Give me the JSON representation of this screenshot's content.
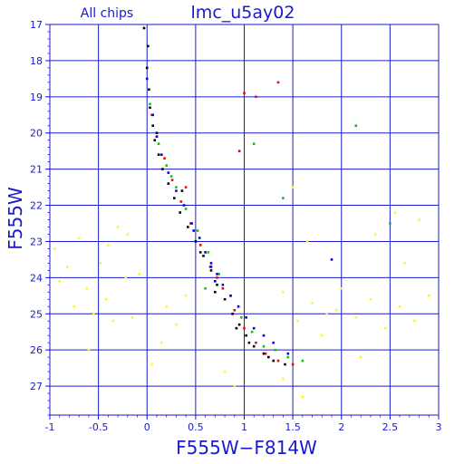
{
  "chart_data": {
    "type": "scatter",
    "title": "lmc_u5ay02",
    "subtitle": "All chips",
    "xlabel": "F555W−F814W",
    "ylabel": "F555W",
    "xlim": [
      -1,
      3
    ],
    "ylim": [
      27.8,
      17
    ],
    "y_inverted": true,
    "grid": true,
    "x_ticks": [
      -1,
      -0.5,
      0,
      0.5,
      1,
      1.5,
      2,
      2.5,
      3
    ],
    "x_tick_labels": [
      "-1",
      "-0.5",
      "0",
      "0.5",
      "1",
      "1.5",
      "2",
      "2.5",
      "3"
    ],
    "y_ticks": [
      17,
      18,
      19,
      20,
      21,
      22,
      23,
      24,
      25,
      26,
      27
    ],
    "y_tick_labels": [
      "17",
      "18",
      "19",
      "20",
      "21",
      "22",
      "23",
      "24",
      "25",
      "26",
      "27"
    ],
    "colors": {
      "axis": "#1a1acc",
      "grid": "#1a1acc",
      "chip_black": "#000000",
      "chip_red": "#ff0000",
      "chip_green": "#00cc00",
      "chip_blue": "#0000ff",
      "background_yellow": "#ffff00"
    },
    "series": [
      {
        "color": "#000000",
        "x": [
          -0.03,
          0.01,
          0.0,
          0.02,
          0.03,
          0.06,
          0.08,
          0.12,
          0.16,
          0.22,
          0.28,
          0.34,
          0.42,
          0.5,
          0.58,
          0.66,
          0.72,
          0.8,
          0.88,
          0.95,
          1.02,
          1.1,
          1.2,
          1.3,
          1.42,
          0.1,
          0.36,
          0.55,
          0.7,
          0.92,
          1.05,
          1.25
        ],
        "y": [
          17.1,
          17.6,
          18.2,
          18.8,
          19.3,
          19.8,
          20.2,
          20.6,
          21.0,
          21.4,
          21.8,
          22.2,
          22.6,
          23.0,
          23.4,
          23.8,
          24.2,
          24.6,
          25.0,
          25.3,
          25.6,
          25.9,
          26.1,
          26.3,
          26.4,
          20.0,
          21.6,
          23.3,
          24.4,
          25.4,
          25.8,
          26.2
        ]
      },
      {
        "color": "#ff0000",
        "x": [
          0.05,
          0.1,
          0.18,
          0.26,
          0.35,
          0.45,
          0.55,
          0.65,
          0.78,
          0.9,
          1.0,
          1.12,
          1.22,
          1.35,
          1.5,
          1.0,
          1.12,
          0.95,
          1.35,
          0.4,
          0.72
        ],
        "y": [
          19.5,
          20.1,
          20.7,
          21.3,
          21.9,
          22.5,
          23.1,
          23.7,
          24.3,
          24.9,
          25.4,
          25.8,
          26.1,
          26.3,
          26.4,
          18.9,
          19.0,
          20.5,
          18.6,
          21.5,
          24.0
        ]
      },
      {
        "color": "#00cc00",
        "x": [
          0.03,
          0.12,
          0.2,
          0.3,
          0.4,
          0.52,
          0.63,
          0.74,
          0.86,
          0.97,
          1.08,
          1.2,
          1.32,
          1.45,
          1.6,
          1.1,
          1.4,
          2.15,
          2.5,
          0.25,
          0.6
        ],
        "y": [
          19.2,
          20.3,
          20.9,
          21.5,
          22.1,
          22.7,
          23.3,
          23.9,
          24.5,
          25.1,
          25.5,
          25.9,
          26.0,
          26.2,
          26.3,
          20.3,
          21.8,
          19.8,
          22.5,
          21.2,
          24.3
        ]
      },
      {
        "color": "#0000ff",
        "x": [
          0.0,
          0.06,
          0.1,
          0.15,
          0.22,
          0.3,
          0.38,
          0.46,
          0.54,
          0.6,
          0.66,
          0.72,
          0.78,
          0.86,
          0.94,
          1.02,
          1.1,
          1.2,
          1.3,
          0.66,
          0.7,
          1.45,
          1.9,
          0.48
        ],
        "y": [
          18.5,
          19.5,
          20.1,
          20.6,
          21.1,
          21.6,
          22.0,
          22.5,
          22.9,
          23.3,
          23.6,
          23.9,
          24.2,
          24.5,
          24.8,
          25.1,
          25.4,
          25.6,
          25.8,
          23.7,
          24.1,
          26.1,
          23.5,
          22.7
        ]
      },
      {
        "color": "#ffff00",
        "x": [
          -0.95,
          -0.9,
          -0.82,
          -0.75,
          -0.7,
          -0.62,
          -0.55,
          -0.48,
          -0.42,
          -0.35,
          -0.3,
          -0.22,
          -0.15,
          -0.08,
          0.2,
          0.3,
          0.4,
          1.4,
          1.55,
          1.7,
          1.85,
          2.0,
          2.15,
          2.3,
          2.45,
          2.6,
          2.75,
          2.9,
          2.35,
          2.55,
          1.5,
          1.65,
          1.95,
          2.2,
          0.05,
          1.8,
          2.65,
          1.4,
          1.6,
          -0.6,
          -0.4,
          -0.2,
          0.15,
          0.8,
          0.9,
          2.8
        ],
        "y": [
          23.2,
          24.1,
          23.7,
          24.8,
          22.9,
          24.3,
          25.0,
          23.6,
          24.6,
          25.2,
          22.6,
          24.0,
          25.1,
          23.9,
          24.8,
          25.3,
          24.5,
          24.4,
          25.2,
          24.7,
          25.0,
          24.3,
          25.1,
          24.6,
          25.4,
          24.8,
          25.2,
          24.5,
          22.8,
          22.2,
          21.5,
          23.0,
          24.9,
          26.2,
          26.4,
          25.6,
          23.6,
          26.8,
          27.3,
          26.0,
          23.1,
          22.8,
          25.8,
          26.6,
          27.0,
          22.4
        ]
      }
    ]
  }
}
